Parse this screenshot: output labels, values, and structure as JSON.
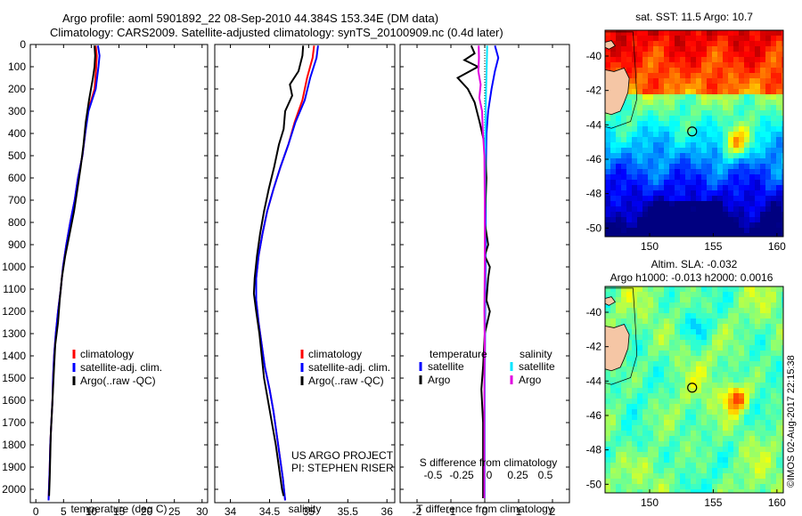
{
  "header": {
    "line1": "Argo profile: aoml 5901892_22 08-Sep-2010 44.384S 153.34E (DM data)",
    "line2": "Climatology: CARS2009. Satellite-adjusted climatology: synTS_20100909.nc (0.4d later)"
  },
  "colors": {
    "climatology": "#ff0000",
    "satellite": "#0000ff",
    "argo": "#000000",
    "salinity_satellite": "#00e5ff",
    "salinity_argo": "#e000e0"
  },
  "chart_data": [
    {
      "type": "line",
      "id": "temperature",
      "xlabel": "temperature (deg C)",
      "xlim": [
        -1,
        31
      ],
      "xticks": [
        "0",
        "5",
        "10",
        "15",
        "20",
        "25",
        "30"
      ],
      "xtick_values": [
        0,
        5,
        10,
        15,
        20,
        25,
        30
      ],
      "ylim": [
        2060,
        0
      ],
      "yticks": [
        "0",
        "100",
        "200",
        "300",
        "400",
        "500",
        "600",
        "700",
        "800",
        "900",
        "1000",
        "1100",
        "1200",
        "1300",
        "1400",
        "1500",
        "1600",
        "1700",
        "1800",
        "1900",
        "2000"
      ],
      "legend": [
        "climatology",
        "satellite-adj. clim.",
        "Argo(..raw -QC)"
      ],
      "series": [
        {
          "name": "climatology",
          "color": "#ff0000",
          "points": [
            [
              10.8,
              5
            ],
            [
              11.0,
              50
            ],
            [
              10.9,
              100
            ],
            [
              10.6,
              200
            ],
            [
              9.4,
              300
            ],
            [
              8.9,
              400
            ],
            [
              8.4,
              500
            ],
            [
              7.6,
              600
            ],
            [
              7.0,
              700
            ],
            [
              6.2,
              800
            ],
            [
              5.5,
              900
            ],
            [
              4.9,
              1000
            ],
            [
              4.5,
              1100
            ],
            [
              4.0,
              1200
            ],
            [
              3.6,
              1300
            ],
            [
              3.3,
              1400
            ],
            [
              3.1,
              1500
            ],
            [
              3.0,
              1600
            ],
            [
              2.8,
              1700
            ],
            [
              2.6,
              1800
            ],
            [
              2.5,
              1900
            ],
            [
              2.3,
              2050
            ]
          ]
        },
        {
          "name": "satellite-adj. clim.",
          "color": "#0000ff",
          "points": [
            [
              11.2,
              5
            ],
            [
              11.5,
              50
            ],
            [
              11.3,
              100
            ],
            [
              10.8,
              200
            ],
            [
              9.5,
              300
            ],
            [
              8.9,
              400
            ],
            [
              8.4,
              500
            ],
            [
              7.6,
              600
            ],
            [
              7.0,
              700
            ],
            [
              6.2,
              800
            ],
            [
              5.5,
              900
            ],
            [
              4.9,
              1000
            ],
            [
              4.5,
              1100
            ],
            [
              4.0,
              1200
            ],
            [
              3.6,
              1300
            ],
            [
              3.3,
              1400
            ],
            [
              3.1,
              1500
            ],
            [
              3.0,
              1600
            ],
            [
              2.8,
              1700
            ],
            [
              2.6,
              1800
            ],
            [
              2.5,
              1900
            ],
            [
              2.3,
              2050
            ]
          ]
        },
        {
          "name": "Argo(..raw -QC)",
          "color": "#000000",
          "points": [
            [
              10.6,
              5
            ],
            [
              10.7,
              50
            ],
            [
              10.6,
              100
            ],
            [
              10.3,
              150
            ],
            [
              9.6,
              250
            ],
            [
              9.0,
              350
            ],
            [
              8.6,
              450
            ],
            [
              8.1,
              550
            ],
            [
              7.5,
              650
            ],
            [
              6.9,
              750
            ],
            [
              6.1,
              850
            ],
            [
              5.3,
              950
            ],
            [
              4.7,
              1050
            ],
            [
              4.3,
              1150
            ],
            [
              4.0,
              1250
            ],
            [
              3.5,
              1350
            ],
            [
              3.3,
              1450
            ],
            [
              3.1,
              1550
            ],
            [
              2.9,
              1650
            ],
            [
              2.7,
              1750
            ],
            [
              2.6,
              1850
            ],
            [
              2.5,
              1950
            ],
            [
              2.4,
              2030
            ]
          ]
        }
      ]
    },
    {
      "type": "line",
      "id": "salinity",
      "xlabel": "salinity",
      "xlim": [
        33.8,
        36.1
      ],
      "xticks": [
        "34",
        "34.5",
        "35",
        "35.5",
        "36"
      ],
      "xtick_values": [
        34,
        34.5,
        35,
        35.5,
        36
      ],
      "ylim": [
        2060,
        0
      ],
      "legend": [
        "climatology",
        "satellite-adj. clim.",
        "Argo(..raw -QC)"
      ],
      "annotation": [
        "US ARGO PROJECT",
        "PI: STEPHEN RISER"
      ],
      "series": [
        {
          "name": "climatology",
          "color": "#ff0000",
          "points": [
            [
              35.07,
              5
            ],
            [
              35.05,
              60
            ],
            [
              34.98,
              150
            ],
            [
              34.92,
              250
            ],
            [
              34.82,
              350
            ],
            [
              34.74,
              450
            ],
            [
              34.64,
              550
            ],
            [
              34.55,
              650
            ],
            [
              34.47,
              750
            ],
            [
              34.41,
              850
            ],
            [
              34.36,
              950
            ],
            [
              34.33,
              1050
            ],
            [
              34.33,
              1150
            ],
            [
              34.36,
              1250
            ],
            [
              34.4,
              1350
            ],
            [
              34.44,
              1450
            ],
            [
              34.5,
              1550
            ],
            [
              34.55,
              1650
            ],
            [
              34.59,
              1750
            ],
            [
              34.63,
              1850
            ],
            [
              34.67,
              1950
            ],
            [
              34.7,
              2050
            ]
          ]
        },
        {
          "name": "satellite-adj. clim.",
          "color": "#0000ff",
          "points": [
            [
              35.12,
              5
            ],
            [
              35.1,
              60
            ],
            [
              35.02,
              150
            ],
            [
              34.95,
              250
            ],
            [
              34.83,
              350
            ],
            [
              34.74,
              450
            ],
            [
              34.64,
              550
            ],
            [
              34.55,
              650
            ],
            [
              34.47,
              750
            ],
            [
              34.41,
              850
            ],
            [
              34.36,
              950
            ],
            [
              34.33,
              1050
            ],
            [
              34.33,
              1150
            ],
            [
              34.36,
              1250
            ],
            [
              34.4,
              1350
            ],
            [
              34.44,
              1450
            ],
            [
              34.5,
              1550
            ],
            [
              34.55,
              1650
            ],
            [
              34.59,
              1750
            ],
            [
              34.63,
              1850
            ],
            [
              34.67,
              1950
            ],
            [
              34.7,
              2050
            ]
          ]
        },
        {
          "name": "Argo(..raw -QC)",
          "color": "#000000",
          "points": [
            [
              34.93,
              5
            ],
            [
              34.92,
              50
            ],
            [
              34.87,
              120
            ],
            [
              34.76,
              180
            ],
            [
              34.79,
              230
            ],
            [
              34.7,
              300
            ],
            [
              34.68,
              380
            ],
            [
              34.62,
              450
            ],
            [
              34.56,
              550
            ],
            [
              34.49,
              650
            ],
            [
              34.43,
              750
            ],
            [
              34.38,
              850
            ],
            [
              34.34,
              950
            ],
            [
              34.31,
              1050
            ],
            [
              34.3,
              1120
            ],
            [
              34.33,
              1200
            ],
            [
              34.37,
              1300
            ],
            [
              34.4,
              1400
            ],
            [
              34.43,
              1500
            ],
            [
              34.48,
              1600
            ],
            [
              34.53,
              1700
            ],
            [
              34.58,
              1800
            ],
            [
              34.62,
              1900
            ],
            [
              34.66,
              2000
            ],
            [
              34.68,
              2030
            ]
          ]
        }
      ]
    },
    {
      "type": "line",
      "id": "difference",
      "xlabel": "T difference from climatology",
      "xlabel_top": "S difference from climatology",
      "xlim": [
        -2.5,
        2.5
      ],
      "xticks": [
        "-2",
        "-1",
        "0",
        "1",
        "2"
      ],
      "xtick_values": [
        -2,
        -1,
        0,
        1,
        2
      ],
      "xticks_top": [
        "-0.5",
        "-0.25",
        "0",
        "0.25",
        "0.5"
      ],
      "legend_headers": [
        "temperature",
        "salinity"
      ],
      "legend": [
        "satellite",
        "Argo",
        "satellite",
        "Argo"
      ],
      "series": [
        {
          "name": "satellite",
          "color": "#0000ff",
          "quantity": "temperature",
          "points": [
            [
              0.3,
              5
            ],
            [
              0.4,
              60
            ],
            [
              0.3,
              120
            ],
            [
              0.2,
              200
            ],
            [
              0.1,
              300
            ],
            [
              0.05,
              400
            ],
            [
              0.03,
              600
            ],
            [
              0.02,
              1000
            ],
            [
              0.0,
              1500
            ],
            [
              0.0,
              2040
            ]
          ]
        },
        {
          "name": "Argo",
          "color": "#000000",
          "quantity": "temperature",
          "points": [
            [
              -0.4,
              5
            ],
            [
              -0.3,
              40
            ],
            [
              -0.6,
              70
            ],
            [
              -0.2,
              100
            ],
            [
              -0.8,
              150
            ],
            [
              -0.5,
              200
            ],
            [
              -0.3,
              260
            ],
            [
              -0.15,
              350
            ],
            [
              0.0,
              450
            ],
            [
              0.05,
              600
            ],
            [
              0.0,
              800
            ],
            [
              0.1,
              900
            ],
            [
              0.0,
              950
            ],
            [
              0.15,
              1000
            ],
            [
              0.1,
              1050
            ],
            [
              0.05,
              1150
            ],
            [
              0.15,
              1200
            ],
            [
              0.0,
              1300
            ],
            [
              -0.05,
              1450
            ],
            [
              -0.1,
              1550
            ],
            [
              -0.05,
              1700
            ],
            [
              -0.05,
              1900
            ],
            [
              -0.05,
              2040
            ]
          ]
        },
        {
          "name": "satellite",
          "color": "#00e5ff",
          "quantity": "salinity",
          "points": [
            [
              0.07,
              5
            ],
            [
              0.06,
              80
            ],
            [
              0.04,
              200
            ],
            [
              0.02,
              350
            ],
            [
              0.01,
              500
            ],
            [
              0.005,
              1000
            ],
            [
              0.0,
              1500
            ],
            [
              0.0,
              2040
            ]
          ]
        },
        {
          "name": "Argo",
          "color": "#e000e0",
          "quantity": "salinity",
          "points": [
            [
              -0.18,
              5
            ],
            [
              -0.17,
              60
            ],
            [
              -0.19,
              120
            ],
            [
              -0.12,
              180
            ],
            [
              -0.16,
              240
            ],
            [
              -0.08,
              300
            ],
            [
              -0.06,
              380
            ],
            [
              -0.01,
              500
            ],
            [
              0.0,
              700
            ],
            [
              0.0,
              1000
            ],
            [
              -0.01,
              1200
            ],
            [
              0.0,
              1350
            ],
            [
              -0.01,
              1500
            ],
            [
              -0.01,
              1700
            ],
            [
              -0.01,
              1900
            ],
            [
              -0.01,
              2040
            ]
          ]
        }
      ]
    },
    {
      "type": "heatmap",
      "id": "sst_map",
      "title": "sat. SST: 11.5 Argo: 10.7",
      "xlim": [
        146.5,
        160.5
      ],
      "ylim": [
        -50.5,
        -38.5
      ],
      "xticks": [
        "150",
        "155",
        "160"
      ],
      "xtick_values": [
        150,
        155,
        160
      ],
      "yticks": [
        "-40",
        "-42",
        "-44",
        "-46",
        "-48",
        "-50"
      ],
      "ytick_values": [
        -40,
        -42,
        -44,
        -46,
        -48,
        -50
      ],
      "marker": [
        153.34,
        -44.384
      ]
    },
    {
      "type": "heatmap",
      "id": "sla_map",
      "title": "Altim. SLA: -0.032",
      "subtitle": "Argo h1000: -0.013 h2000: 0.0016",
      "xlim": [
        146.5,
        160.5
      ],
      "ylim": [
        -50.5,
        -38.5
      ],
      "xticks": [
        "150",
        "155",
        "160"
      ],
      "xtick_values": [
        150,
        155,
        160
      ],
      "yticks": [
        "-40",
        "-42",
        "-44",
        "-46",
        "-48",
        "-50"
      ],
      "ytick_values": [
        -40,
        -42,
        -44,
        -46,
        -48,
        -50
      ],
      "marker": [
        153.34,
        -44.384
      ]
    }
  ],
  "credit": "©IMOS 02-Aug-2017 22:15:38"
}
